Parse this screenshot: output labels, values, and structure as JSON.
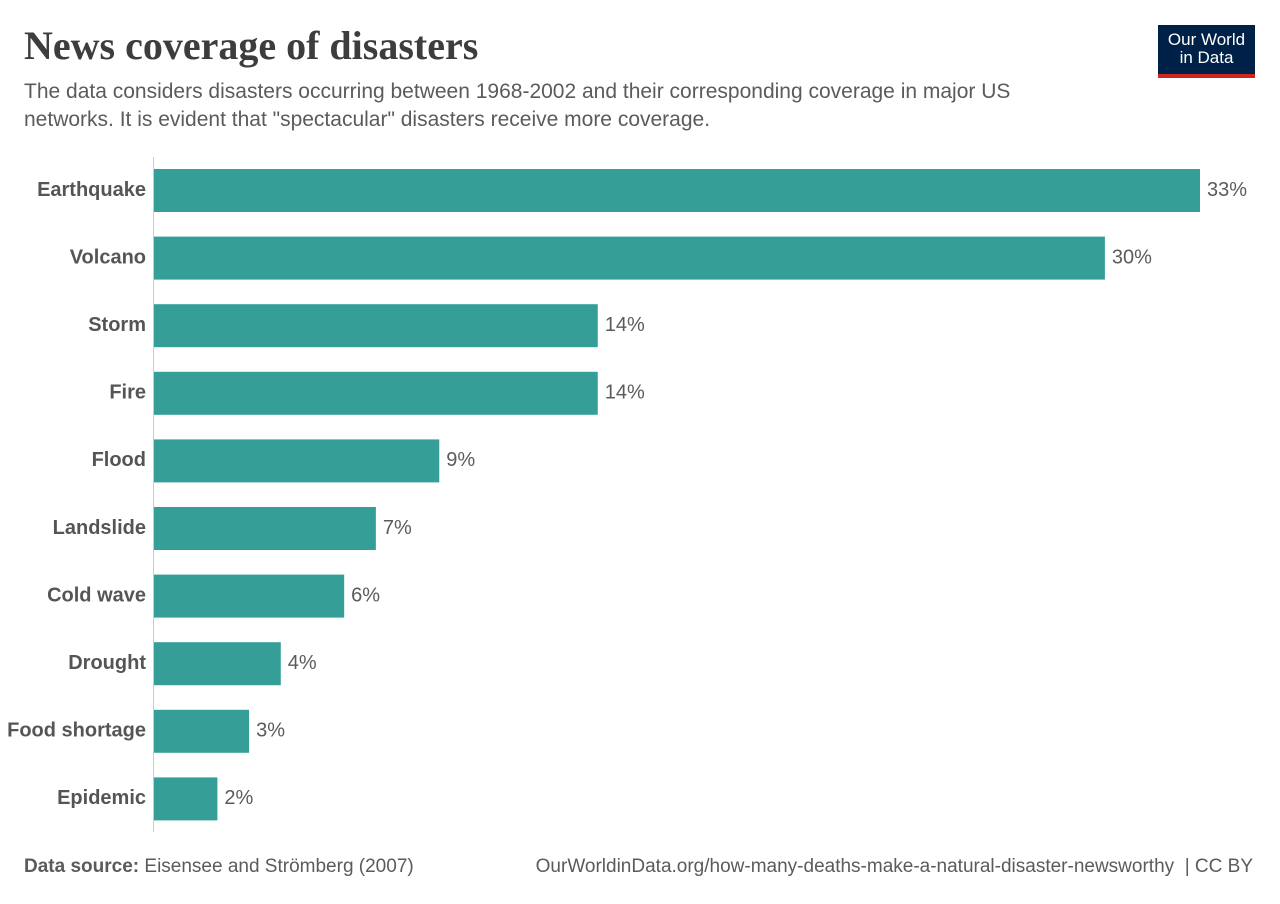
{
  "chart_data": {
    "type": "bar",
    "orientation": "horizontal",
    "title": "News coverage of disasters",
    "subtitle": "The data considers disasters occurring between 1968-2002 and their corresponding coverage in major US networks. It is evident that \"spectacular\" disasters receive more coverage.",
    "categories": [
      "Earthquake",
      "Volcano",
      "Storm",
      "Fire",
      "Flood",
      "Landslide",
      "Cold wave",
      "Drought",
      "Food shortage",
      "Epidemic"
    ],
    "values": [
      33,
      30,
      14,
      14,
      9,
      7,
      6,
      4,
      3,
      2
    ],
    "value_labels": [
      "33%",
      "30%",
      "14%",
      "14%",
      "9%",
      "7%",
      "6%",
      "4%",
      "3%",
      "2%"
    ],
    "color": "#359f97",
    "source_label": "Data source:",
    "source": "Eisensee and Strömberg (2007)",
    "url": "OurWorldinData.org/how-many-deaths-make-a-natural-disaster-newsworthy",
    "license": "| CC BY"
  },
  "logo": {
    "line1": "Our World",
    "line2": "in Data"
  }
}
